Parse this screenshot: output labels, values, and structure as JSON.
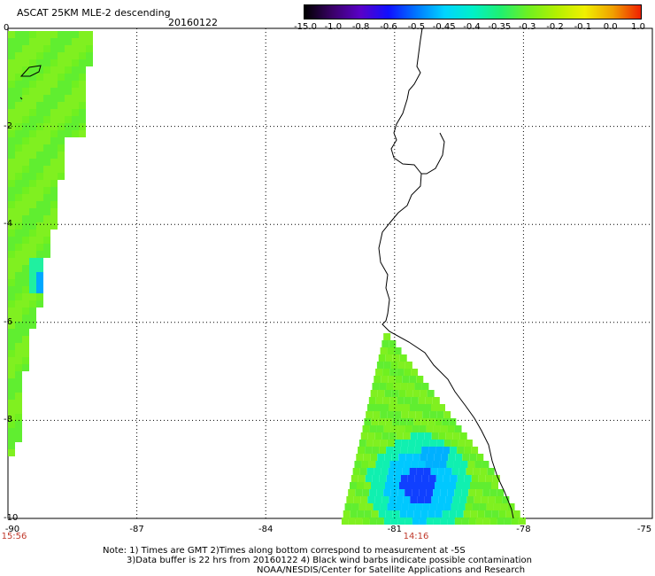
{
  "header": {
    "title": "ASCAT 25KM MLE-2 descending",
    "date": "20160122"
  },
  "colorbar": {
    "labels": [
      "-15.0",
      "-1.0",
      "-0.8",
      "-0.6",
      "-0.5",
      "-0.45",
      "-0.4",
      "-0.35",
      "-0.3",
      "-0.2",
      "-0.1",
      "0.0",
      "1.0"
    ],
    "colors": [
      "#000000",
      "#3a0068",
      "#5a00c8",
      "#1010ff",
      "#0078ff",
      "#00d4ff",
      "#00f0c8",
      "#20f070",
      "#70f020",
      "#b4f000",
      "#f0f000",
      "#f0a000",
      "#f02000"
    ]
  },
  "axes": {
    "lat_labels": [
      "0",
      "-2",
      "-4",
      "-6",
      "-8",
      "-10"
    ],
    "lon_labels": [
      "-90",
      "-87",
      "-84",
      "-81",
      "-78",
      "-75"
    ],
    "time_labels": [
      "15:56",
      "14:16"
    ]
  },
  "map": {
    "lon_range": [
      -90,
      -75
    ],
    "lat_range": [
      -10,
      0
    ],
    "coast_color": "#000000",
    "low_color": "#70f020",
    "high_color": "#1010ff"
  },
  "notes": {
    "line1": "Note: 1) Times are GMT 2)Times along bottom correspond to measurement at -5S",
    "line2": "3)Data buffer is 22 hrs from 20160122 4) Black wind barbs indicate possible contamination",
    "line3": "NOAA/NESDIS/Center for Satellite Applications and Research"
  }
}
